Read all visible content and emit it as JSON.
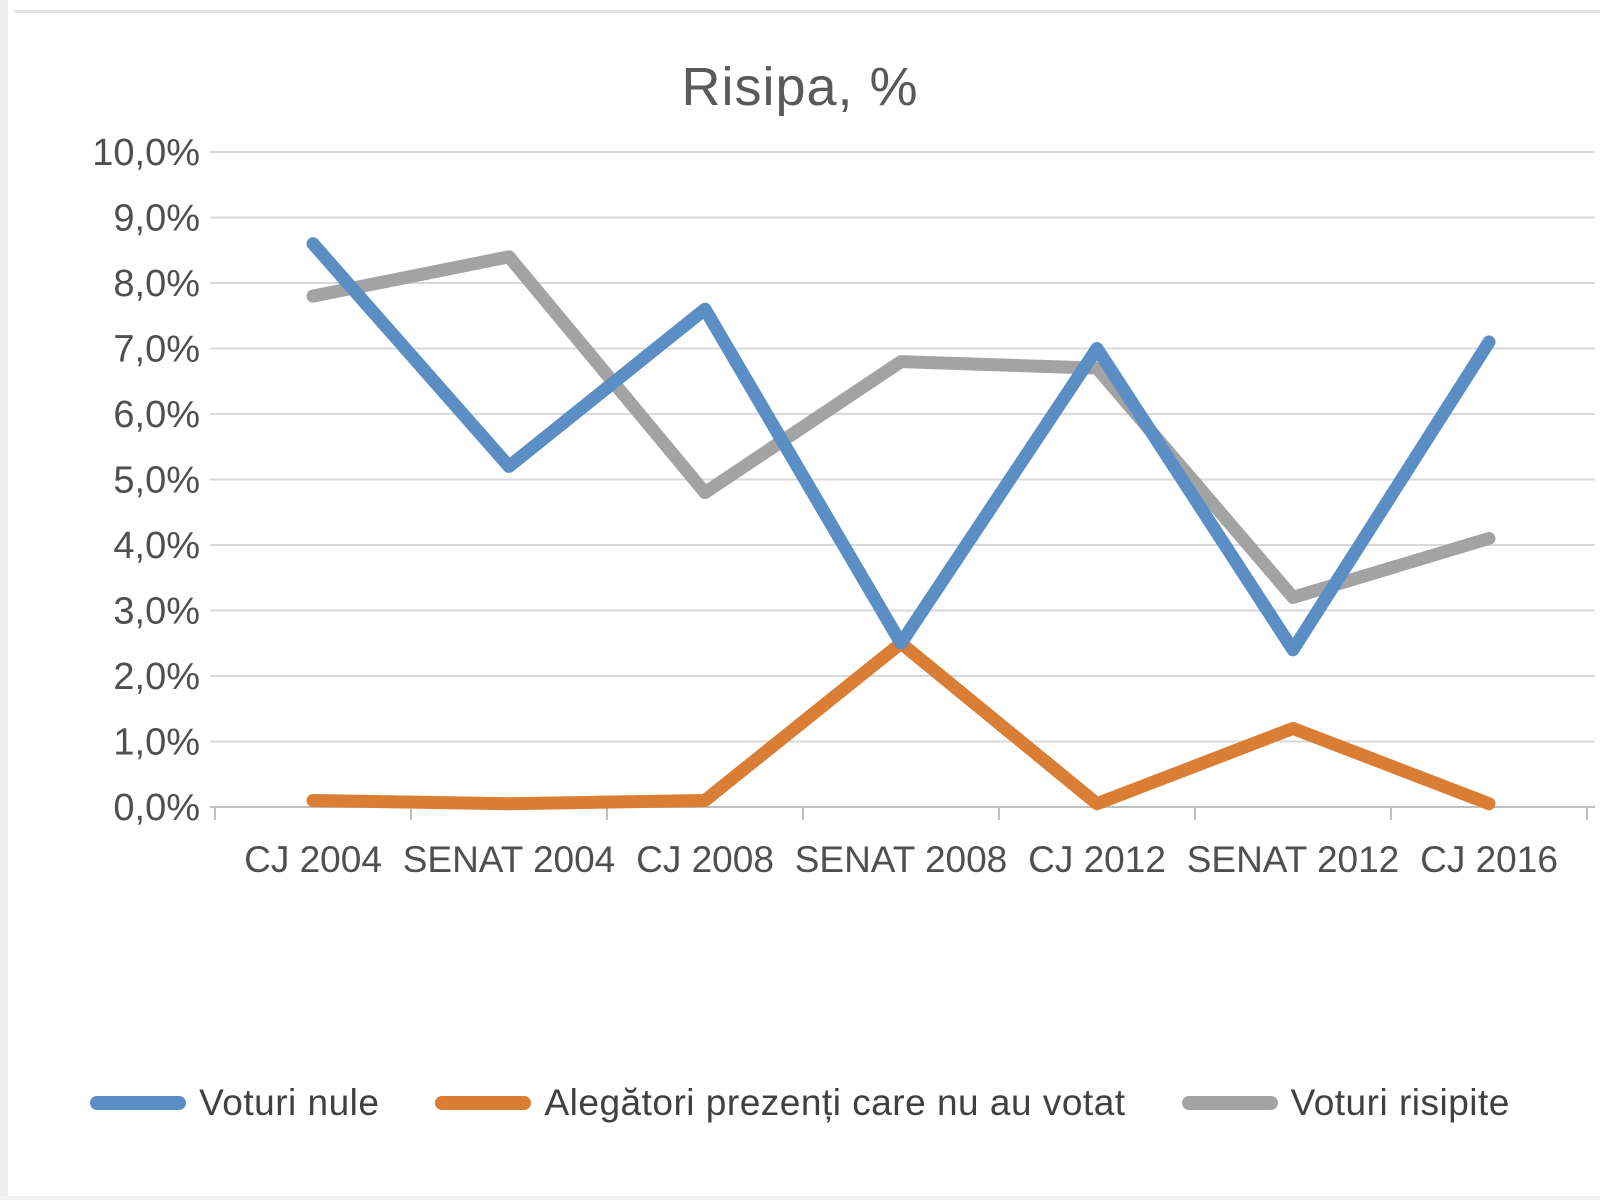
{
  "chart_data": {
    "type": "line",
    "title": "Risipa, %",
    "categories": [
      "CJ 2004",
      "SENAT 2004",
      "CJ 2008",
      "SENAT 2008",
      "CJ 2012",
      "SENAT 2012",
      "CJ 2016"
    ],
    "series": [
      {
        "name": "Voturi nule",
        "color": "#5B8EC4",
        "values": [
          8.6,
          5.2,
          7.6,
          2.5,
          7.0,
          2.4,
          7.1
        ]
      },
      {
        "name": "Alegători prezenți care nu au votat",
        "color": "#DA7E35",
        "values": [
          0.1,
          0.05,
          0.1,
          2.5,
          0.05,
          1.2,
          0.05
        ]
      },
      {
        "name": "Voturi risipite",
        "color": "#A3A3A3",
        "values": [
          7.8,
          8.4,
          4.8,
          6.8,
          6.7,
          3.2,
          4.1
        ]
      }
    ],
    "y_axis": {
      "min": 0,
      "max": 10,
      "step": 1,
      "tick_labels": [
        "10,0%",
        "9,0%",
        "8,0%",
        "7,0%",
        "6,0%",
        "5,0%",
        "4,0%",
        "3,0%",
        "2,0%",
        "1,0%",
        "0,0%"
      ]
    },
    "xlabel": "",
    "ylabel": "",
    "grid": true,
    "legend_position": "bottom",
    "style": {
      "gridline_color": "#D9D9D9",
      "axis_color": "#BFBFBF",
      "tick_color": "#BFBFBF",
      "axis_text_color": "#4F4F4F",
      "title_text_color": "#595959",
      "legend_text_color": "#404040",
      "line_width": 13
    }
  }
}
